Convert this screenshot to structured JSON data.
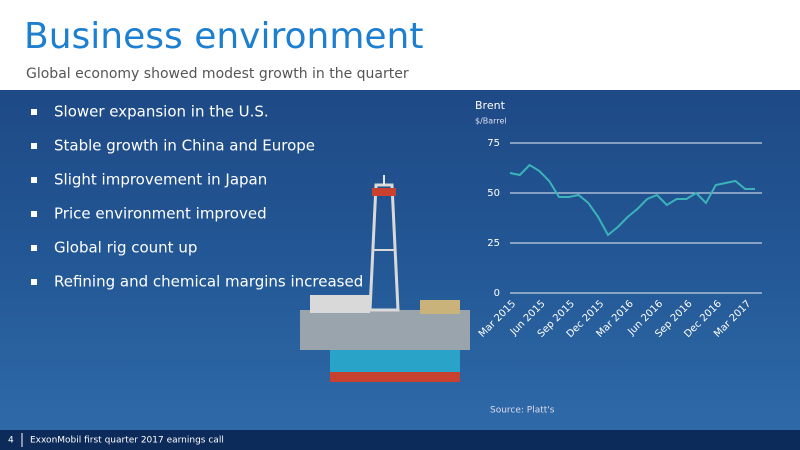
{
  "header": {
    "title": "Business environment",
    "subtitle": "Global economy showed modest growth in the quarter"
  },
  "bullets": [
    "Slower expansion in the U.S.",
    "Stable growth in China and Europe",
    "Slight improvement in Japan",
    "Price environment improved",
    "Global rig count up",
    "Refining and chemical margins increased"
  ],
  "chart_data": {
    "type": "line",
    "title": "Brent",
    "subtitle": "$/Barrel",
    "categories": [
      "Mar 2015",
      null,
      null,
      "Jun 2015",
      null,
      null,
      "Sep 2015",
      null,
      null,
      "Dec 2015",
      null,
      null,
      "Mar 2016",
      null,
      null,
      "Jun 2016",
      null,
      null,
      "Sep 2016",
      null,
      null,
      "Dec 2016",
      null,
      null,
      "Mar 2017",
      null
    ],
    "values": [
      60,
      59,
      64,
      61,
      56,
      48,
      48,
      49,
      45,
      38,
      29,
      33,
      38,
      42,
      47,
      49,
      44,
      47,
      47,
      50,
      45,
      54,
      55,
      56,
      52,
      52
    ],
    "color": "#3bb3b8",
    "ylim": [
      0,
      75
    ],
    "yticks": [
      0,
      25,
      50,
      75
    ],
    "grid": true,
    "source": "Source: Platt's"
  },
  "footer": {
    "page": "4",
    "text": "ExxonMobil first quarter 2017 earnings call"
  }
}
